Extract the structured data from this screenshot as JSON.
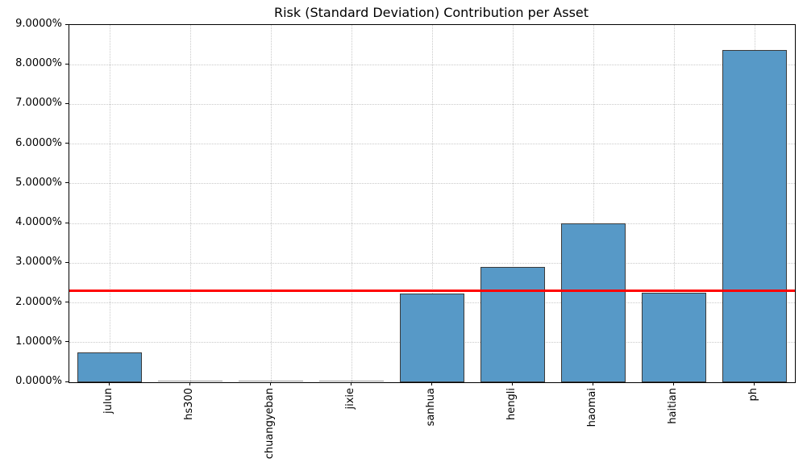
{
  "chart_data": {
    "type": "bar",
    "title": "Risk (Standard Deviation) Contribution per Asset",
    "categories": [
      "julun",
      "hs300",
      "chuangyeban",
      "jixie",
      "sanhua",
      "hengli",
      "haomai",
      "haitian",
      "ph"
    ],
    "values": [
      0.75,
      0.0,
      0.0,
      0.0,
      2.24,
      2.91,
      4.0,
      2.26,
      8.37
    ],
    "unit": "%",
    "xlabel": "",
    "ylabel": "",
    "ylim": [
      0,
      9
    ],
    "yticks": [
      0,
      1,
      2,
      3,
      4,
      5,
      6,
      7,
      8,
      9
    ],
    "ytick_labels": [
      "0.0000%",
      "1.0000%",
      "2.0000%",
      "3.0000%",
      "4.0000%",
      "5.0000%",
      "6.0000%",
      "7.0000%",
      "8.0000%",
      "9.0000%"
    ],
    "grid": true,
    "grid_style": "dotted",
    "legend_position": "none",
    "reference_line": {
      "value": 2.3,
      "color": "#ff0000",
      "style": "solid"
    },
    "bar_color": "#5799c7",
    "bar_edge_color": "#3b3b3b",
    "background_color": "#ffffff"
  }
}
